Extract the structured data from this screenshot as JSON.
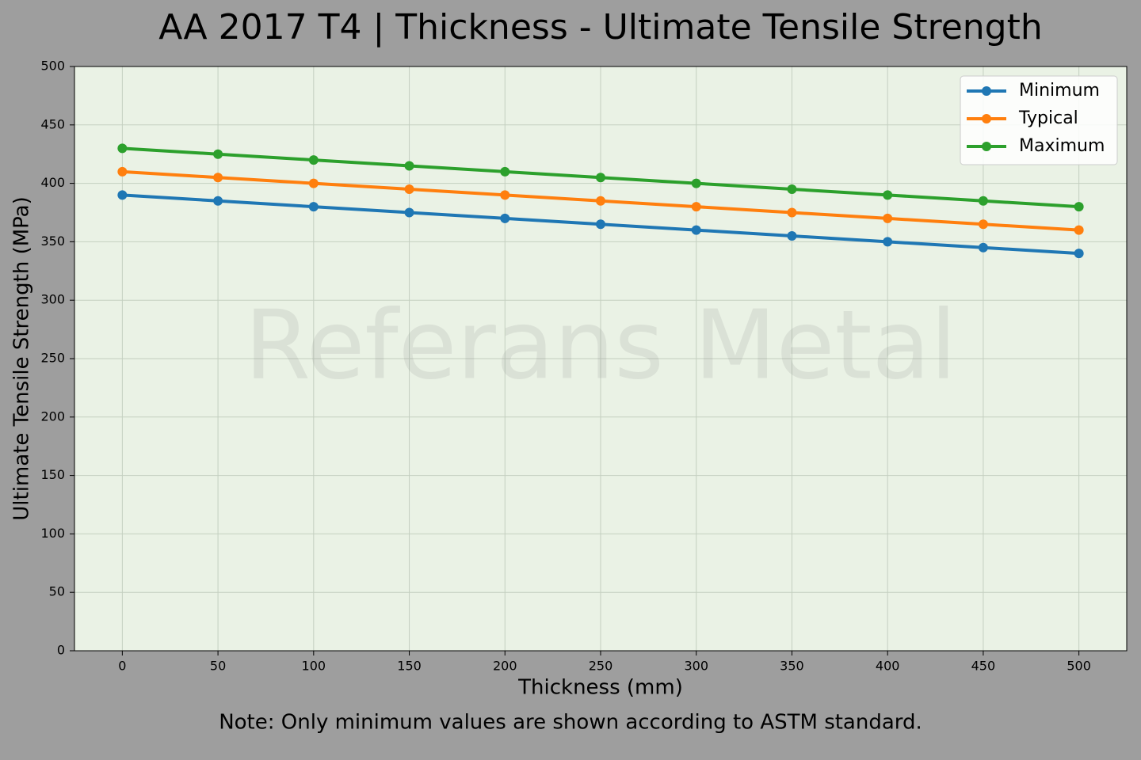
{
  "chart_data": {
    "type": "line",
    "title": "AA 2017 T4 | Thickness - Ultimate Tensile Strength",
    "xlabel": "Thickness (mm)",
    "ylabel": "Ultimate Tensile Strength (MPa)",
    "note": "Note: Only minimum values are shown according to ASTM standard.",
    "watermark": "Referans Metal",
    "x": [
      0,
      50,
      100,
      150,
      200,
      250,
      300,
      350,
      400,
      450,
      500
    ],
    "series": [
      {
        "name": "Minimum",
        "color": "#1f77b4",
        "values": [
          390,
          385,
          380,
          375,
          370,
          365,
          360,
          355,
          350,
          345,
          340
        ]
      },
      {
        "name": "Typical",
        "color": "#ff7f0e",
        "values": [
          410,
          405,
          400,
          395,
          390,
          385,
          380,
          375,
          370,
          365,
          360
        ]
      },
      {
        "name": "Maximum",
        "color": "#2ca02c",
        "values": [
          430,
          425,
          420,
          415,
          410,
          405,
          400,
          395,
          390,
          385,
          380
        ]
      }
    ],
    "xlim": [
      -25,
      525
    ],
    "ylim": [
      0,
      500
    ],
    "xticks": [
      0,
      50,
      100,
      150,
      200,
      250,
      300,
      350,
      400,
      450,
      500
    ],
    "yticks": [
      0,
      50,
      100,
      150,
      200,
      250,
      300,
      350,
      400,
      450,
      500
    ],
    "grid": true,
    "legend": "upper right"
  }
}
